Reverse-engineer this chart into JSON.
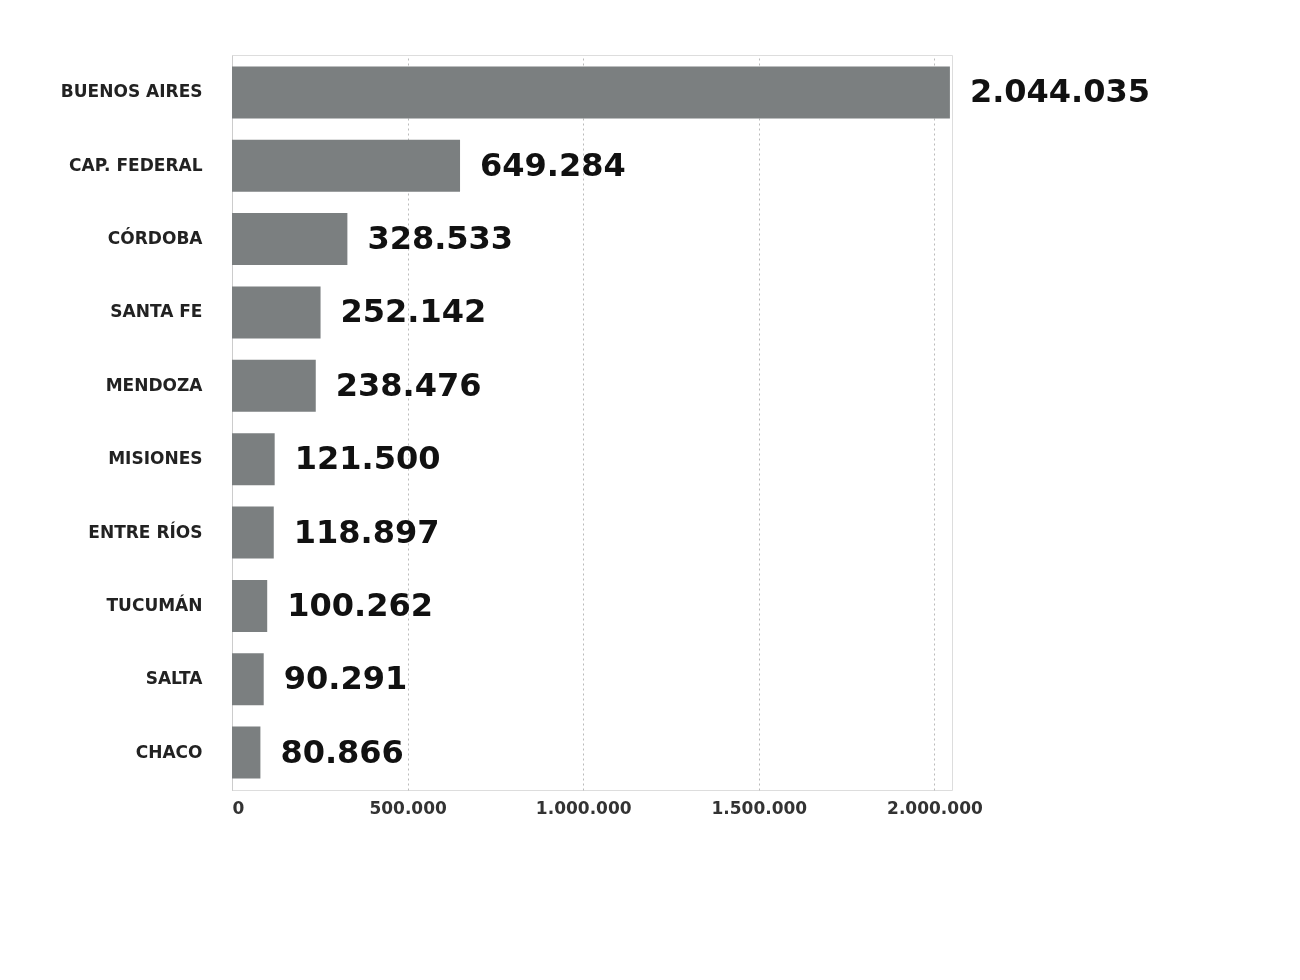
{
  "chart_data": {
    "type": "bar",
    "orientation": "horizontal",
    "categories": [
      "BUENOS AIRES",
      "CAP.  FEDERAL",
      "CÓRDOBA",
      "SANTA FE",
      "MENDOZA",
      "MISIONES",
      "ENTRE RÍOS",
      "TUCUMÁN",
      "SALTA",
      "CHACO"
    ],
    "values": [
      2044035,
      649284,
      328533,
      252142,
      238476,
      121500,
      118897,
      100262,
      90291,
      80866
    ],
    "value_labels": [
      "2.044.035",
      "649.284",
      "328.533",
      "252.142",
      "238.476",
      "121.500",
      "118.897",
      "100.262",
      "90.291",
      "80.866"
    ],
    "color": "#7b7f80",
    "xlim": [
      0,
      2050000
    ],
    "xticks": [
      0,
      {
        "value": 500000,
        "label": "500.000"
      },
      {
        "value": 1000000,
        "label": "1.000.000"
      },
      {
        "value": 1500000,
        "label": "1.500.000"
      },
      {
        "value": 2000000,
        "label": "2.000.000"
      }
    ],
    "grid": "x",
    "line_style": "dotted"
  }
}
